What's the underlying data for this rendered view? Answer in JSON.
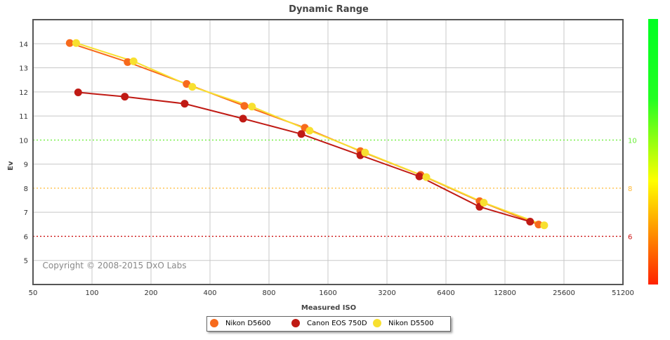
{
  "chart_data": {
    "type": "line",
    "title": "Dynamic Range",
    "xlabel": "Measured ISO",
    "ylabel": "Ev",
    "x_scale": "log2",
    "xlim": [
      50,
      51200
    ],
    "ylim": [
      4,
      15
    ],
    "x_ticks": [
      "50",
      "100",
      "200",
      "400",
      "800",
      "1600",
      "3200",
      "6400",
      "12800",
      "25600",
      "51200"
    ],
    "y_ticks": [
      "5",
      "6",
      "7",
      "8",
      "9",
      "10",
      "11",
      "12",
      "13",
      "14"
    ],
    "grid": true,
    "reference_lines": [
      {
        "value": 10,
        "label": "10",
        "color": "#66ee33"
      },
      {
        "value": 8,
        "label": "8",
        "color": "#ffb833"
      },
      {
        "value": 6,
        "label": "6",
        "color": "#cc1111"
      }
    ],
    "color_scale": [
      "#00ff22",
      "#ffff00",
      "#ff2200"
    ],
    "annotation": "Copyright © 2008-2015 DxO Labs",
    "legend_position": "bottom",
    "series": [
      {
        "name": "Nikon D5600",
        "color": "#f76a1c",
        "x": [
          77,
          152,
          304,
          599,
          1219,
          2340,
          4750,
          9500,
          19000
        ],
        "y": [
          14.03,
          13.24,
          12.33,
          11.42,
          10.51,
          9.54,
          8.55,
          7.46,
          6.49
        ]
      },
      {
        "name": "Canon EOS 750D",
        "color": "#c01a14",
        "x": [
          85,
          147,
          297,
          590,
          1170,
          2340,
          4680,
          9500,
          17200
        ],
        "y": [
          11.98,
          11.8,
          11.51,
          10.89,
          10.25,
          9.37,
          8.49,
          7.23,
          6.61
        ]
      },
      {
        "name": "Nikon D5500",
        "color": "#f8e030",
        "x": [
          83,
          163,
          325,
          655,
          1290,
          2475,
          5080,
          9980,
          20300
        ],
        "y": [
          14.03,
          13.27,
          12.21,
          11.39,
          10.39,
          9.48,
          8.46,
          7.4,
          6.46
        ]
      }
    ]
  }
}
